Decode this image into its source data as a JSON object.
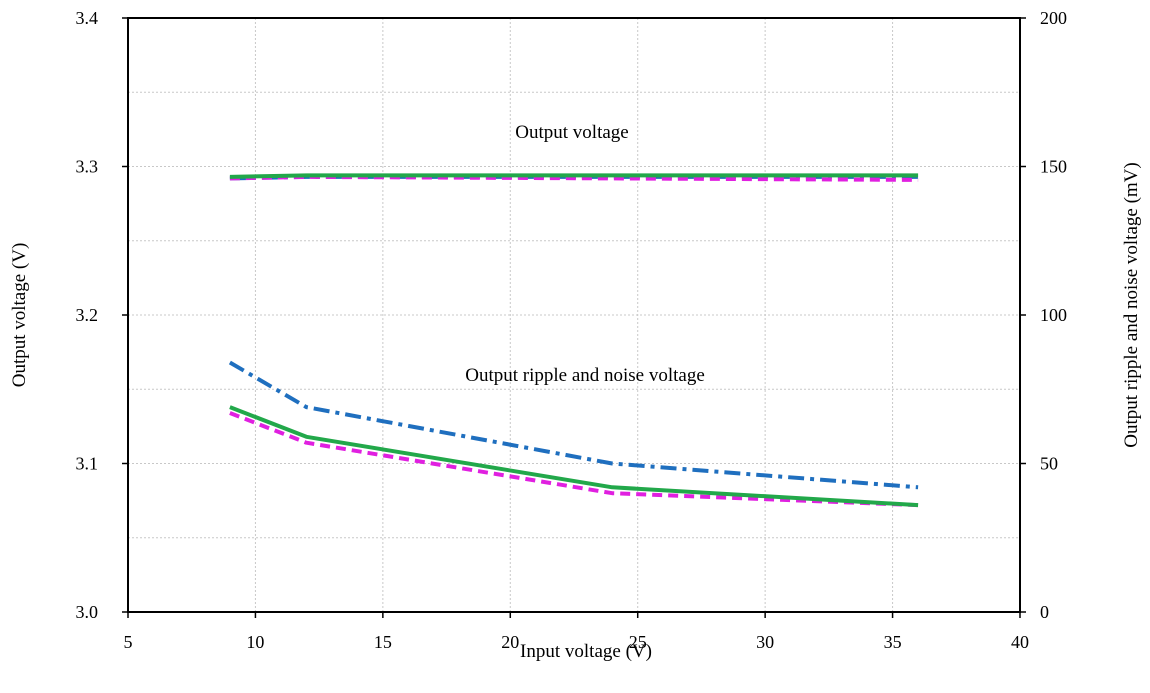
{
  "chart_data": {
    "type": "line",
    "xlabel": "Input voltage (V)",
    "ylabel": "Output voltage (V)",
    "y2label": "Output ripple and noise voltage (mV)",
    "xlim": [
      5,
      40
    ],
    "ylim": [
      3.0,
      3.4
    ],
    "y2lim": [
      0,
      200
    ],
    "xticks": [
      "5",
      "10",
      "15",
      "20",
      "25",
      "30",
      "35",
      "40"
    ],
    "yticks": [
      "3.0",
      "3.1",
      "3.2",
      "3.3",
      "3.4"
    ],
    "y2ticks": [
      "0",
      "50",
      "100",
      "150",
      "200"
    ],
    "grid": true,
    "annotations": {
      "output_voltage": "Output voltage",
      "ripple": "Output ripple and noise voltage"
    },
    "series": [
      {
        "axis": "left",
        "style": "dashdot",
        "color": "#1f6fbf",
        "x": [
          9,
          12,
          24,
          36
        ],
        "values": [
          3.292,
          3.293,
          3.293,
          3.293
        ]
      },
      {
        "axis": "left",
        "style": "dashed",
        "color": "#e020e0",
        "x": [
          9,
          12,
          24,
          36
        ],
        "values": [
          3.292,
          3.293,
          3.292,
          3.291
        ]
      },
      {
        "axis": "left",
        "style": "solid",
        "color": "#22a84a",
        "x": [
          9,
          12,
          24,
          36
        ],
        "values": [
          3.293,
          3.294,
          3.294,
          3.294
        ]
      },
      {
        "axis": "right",
        "style": "dashdot",
        "color": "#1f6fbf",
        "x": [
          9,
          12,
          24,
          36
        ],
        "values": [
          84,
          69,
          50,
          42
        ]
      },
      {
        "axis": "right",
        "style": "dashed",
        "color": "#e020e0",
        "x": [
          9,
          12,
          24,
          36
        ],
        "values": [
          67,
          57,
          40,
          36
        ]
      },
      {
        "axis": "right",
        "style": "solid",
        "color": "#22a84a",
        "x": [
          9,
          12,
          24,
          36
        ],
        "values": [
          69,
          59,
          42,
          36
        ]
      }
    ]
  }
}
